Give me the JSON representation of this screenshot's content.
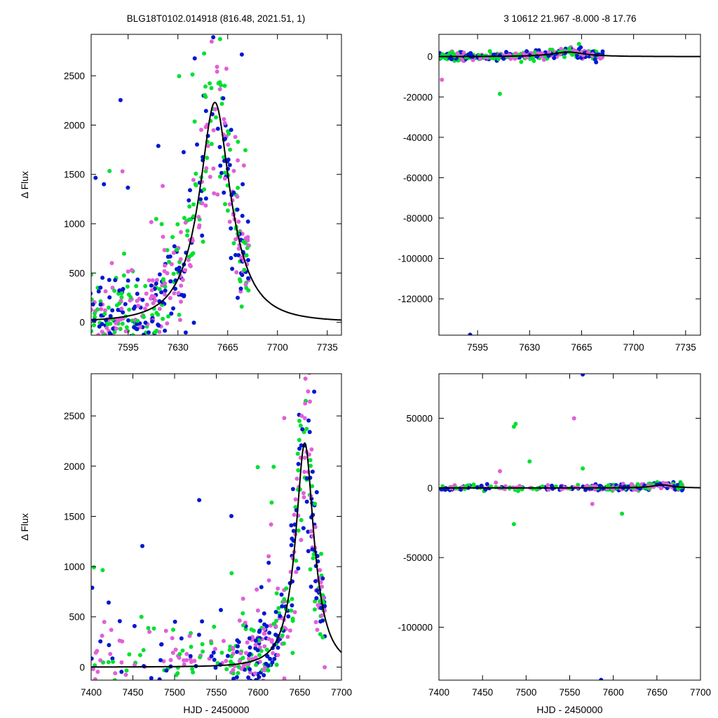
{
  "titles": {
    "left": "BLG18T0102.014918 (816.48, 2021.51,    1)",
    "right": "3    10612    21.967    -8.000    -8    17.76"
  },
  "colors": {
    "magenta": "#e060d8",
    "green": "#00e030",
    "blue": "#0018d0",
    "model": "#000000"
  },
  "chart_data": [
    {
      "id": "top-left",
      "type": "scatter",
      "xlim": [
        7569,
        7745
      ],
      "ylim": [
        -130,
        2920
      ],
      "xticks": [
        7595,
        7630,
        7665,
        7700,
        7735
      ],
      "yticks": [
        0,
        500,
        1000,
        1500,
        2000,
        2500
      ],
      "ylabel": "Δ Flux",
      "xlabel": "",
      "model": {
        "t0": 7656,
        "peak": 2230,
        "tau_rise": 11,
        "tau_fall": 11
      }
    },
    {
      "id": "top-right",
      "type": "scatter",
      "xlim": [
        7569,
        7745
      ],
      "ylim": [
        -138000,
        11000
      ],
      "xticks": [
        7595,
        7630,
        7665,
        7700,
        7735
      ],
      "yticks": [
        0,
        -20000,
        -40000,
        -60000,
        -80000,
        -100000,
        -120000
      ],
      "ylabel": "",
      "xlabel": "",
      "model": {
        "t0": 7656,
        "peak": 2230,
        "tau_rise": 11,
        "tau_fall": 11
      },
      "outliers": [
        {
          "x": 7590,
          "y": -137800,
          "color": "blue"
        },
        {
          "x": 7571,
          "y": -11500,
          "color": "magenta"
        },
        {
          "x": 7610,
          "y": -18500,
          "color": "green"
        }
      ]
    },
    {
      "id": "bottom-left",
      "type": "scatter",
      "xlim": [
        7400,
        7700
      ],
      "ylim": [
        -130,
        2920
      ],
      "xticks": [
        7400,
        7450,
        7500,
        7550,
        7600,
        7650,
        7700
      ],
      "yticks": [
        0,
        500,
        1000,
        1500,
        2000,
        2500
      ],
      "ylabel": "Δ Flux",
      "xlabel": "HJD - 2450000",
      "model": {
        "t0": 7656,
        "peak": 2230,
        "tau_rise": 11,
        "tau_fall": 11
      }
    },
    {
      "id": "bottom-right",
      "type": "scatter",
      "xlim": [
        7400,
        7700
      ],
      "ylim": [
        -138000,
        82000
      ],
      "xticks": [
        7400,
        7450,
        7500,
        7550,
        7600,
        7650,
        7700
      ],
      "yticks": [
        50000,
        0,
        -50000,
        -100000
      ],
      "ylabel": "",
      "xlabel": "HJD - 2450000",
      "model": {
        "t0": 7656,
        "peak": 2230,
        "tau_rise": 11,
        "tau_fall": 11
      },
      "outliers": [
        {
          "x": 7565,
          "y": 81500,
          "color": "blue"
        },
        {
          "x": 7555,
          "y": 50000,
          "color": "magenta"
        },
        {
          "x": 7488,
          "y": 46000,
          "color": "green"
        },
        {
          "x": 7486,
          "y": 44000,
          "color": "green"
        },
        {
          "x": 7504,
          "y": 19000,
          "color": "green"
        },
        {
          "x": 7565,
          "y": 14000,
          "color": "green"
        },
        {
          "x": 7470,
          "y": 12000,
          "color": "magenta"
        },
        {
          "x": 7486,
          "y": -26000,
          "color": "green"
        },
        {
          "x": 7610,
          "y": -18500,
          "color": "green"
        },
        {
          "x": 7576,
          "y": -11500,
          "color": "magenta"
        },
        {
          "x": 7586,
          "y": -137800,
          "color": "blue"
        }
      ]
    }
  ]
}
